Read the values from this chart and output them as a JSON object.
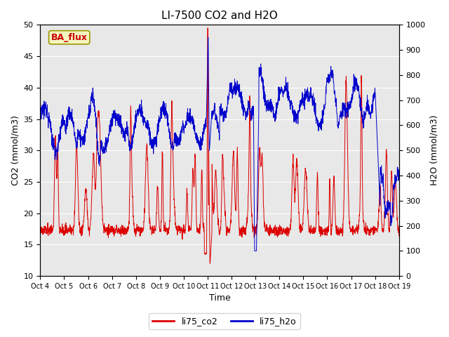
{
  "title": "LI-7500 CO2 and H2O",
  "ylabel_left": "CO2 (mmol/m3)",
  "ylabel_right": "H2O (mmol/m3)",
  "xlabel": "Time",
  "ylim_left": [
    10,
    50
  ],
  "ylim_right": [
    0,
    1000
  ],
  "yticks_left": [
    10,
    15,
    20,
    25,
    30,
    35,
    40,
    45,
    50
  ],
  "yticks_right": [
    0,
    100,
    200,
    300,
    400,
    500,
    600,
    700,
    800,
    900,
    1000
  ],
  "xtick_labels": [
    "Oct 4",
    "Oct 5",
    "Oct 6",
    "Oct 7",
    "Oct 8",
    "Oct 9",
    "Oct 10",
    "Oct 11",
    "Oct 12",
    "Oct 13",
    "Oct 14",
    "Oct 15",
    "Oct 16",
    "Oct 17",
    "Oct 18",
    "Oct 19"
  ],
  "bg_color": "#e8e8e8",
  "annotation_text": "BA_flux",
  "annotation_color": "#cc0000",
  "annotation_bg": "#f5f5c0",
  "annotation_edge": "#999900",
  "line_co2_color": "#dd0000",
  "line_h2o_color": "#0000cc",
  "legend_co2": "li75_co2",
  "legend_h2o": "li75_h2o",
  "title_fontsize": 11,
  "tick_fontsize": 8,
  "label_fontsize": 9,
  "legend_fontsize": 9,
  "grid_color": "#ffffff",
  "n_points": 2160,
  "n_days": 15
}
